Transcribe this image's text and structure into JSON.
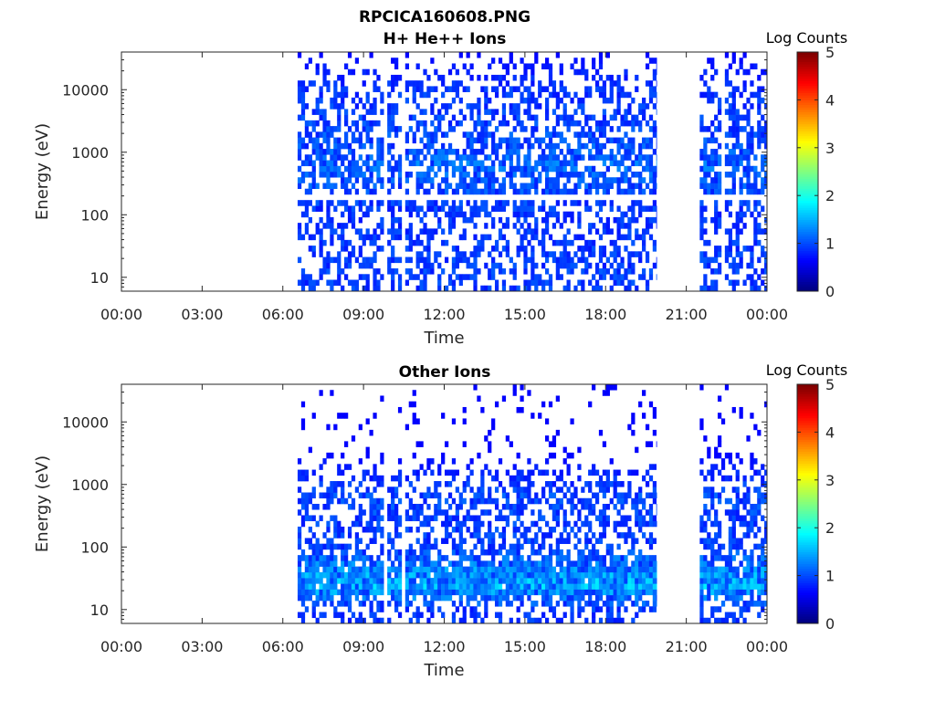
{
  "figure_title": "RPCICA160608.PNG",
  "chart_data": [
    {
      "type": "heatmap",
      "title": "H+ He++ Ions",
      "xlabel": "Time",
      "ylabel": "Energy (eV)",
      "yscale": "log",
      "ylim": [
        6,
        40000
      ],
      "yticks": [
        10,
        100,
        1000,
        10000
      ],
      "ytick_labels": [
        "10",
        "100",
        "1000",
        "10000"
      ],
      "xlim": [
        0,
        24
      ],
      "xticks": [
        0,
        3,
        6,
        9,
        12,
        15,
        18,
        21,
        24
      ],
      "xtick_labels": [
        "00:00",
        "03:00",
        "06:00",
        "09:00",
        "12:00",
        "15:00",
        "18:00",
        "21:00",
        "00:00"
      ],
      "colorbar": {
        "label": "Log Counts",
        "range": [
          0,
          5
        ],
        "ticks": [
          "0",
          "1",
          "2",
          "3",
          "4",
          "5"
        ],
        "colormap": "jet"
      },
      "data_intervals_hours": [
        [
          6.55,
          19.9
        ],
        [
          21.5,
          24
        ]
      ],
      "gaps_hours": [
        [
          9.75,
          9.9
        ],
        [
          10.45,
          10.6
        ],
        [
          22.35,
          22.45
        ]
      ],
      "gap_energy_line_eV": 200,
      "mean_log_counts_by_energy": [
        {
          "energy": 10,
          "value": 0.35
        },
        {
          "energy": 100,
          "value": 0.3
        },
        {
          "energy": 700,
          "value": 0.55
        },
        {
          "energy": 1000,
          "value": 0.45
        },
        {
          "energy": 10000,
          "value": 0.3
        },
        {
          "energy": 30000,
          "value": 0.1
        }
      ]
    },
    {
      "type": "heatmap",
      "title": "Other Ions",
      "xlabel": "Time",
      "ylabel": "Energy (eV)",
      "yscale": "log",
      "ylim": [
        6,
        40000
      ],
      "yticks": [
        10,
        100,
        1000,
        10000
      ],
      "ytick_labels": [
        "10",
        "100",
        "1000",
        "10000"
      ],
      "xlim": [
        0,
        24
      ],
      "xticks": [
        0,
        3,
        6,
        9,
        12,
        15,
        18,
        21,
        24
      ],
      "xtick_labels": [
        "00:00",
        "03:00",
        "06:00",
        "09:00",
        "12:00",
        "15:00",
        "18:00",
        "21:00",
        "00:00"
      ],
      "colorbar": {
        "label": "Log Counts",
        "range": [
          0,
          5
        ],
        "ticks": [
          "0",
          "1",
          "2",
          "3",
          "4",
          "5"
        ],
        "colormap": "jet"
      },
      "data_intervals_hours": [
        [
          6.55,
          19.9
        ],
        [
          21.5,
          24
        ]
      ],
      "gaps_hours": [
        [
          9.75,
          9.9
        ],
        [
          10.45,
          10.6
        ]
      ],
      "mean_log_counts_by_energy": [
        {
          "energy": 10,
          "value": 0.3
        },
        {
          "energy": 25,
          "value": 0.9
        },
        {
          "energy": 100,
          "value": 0.35
        },
        {
          "energy": 700,
          "value": 0.4
        },
        {
          "energy": 3000,
          "value": 0.05
        }
      ]
    }
  ]
}
